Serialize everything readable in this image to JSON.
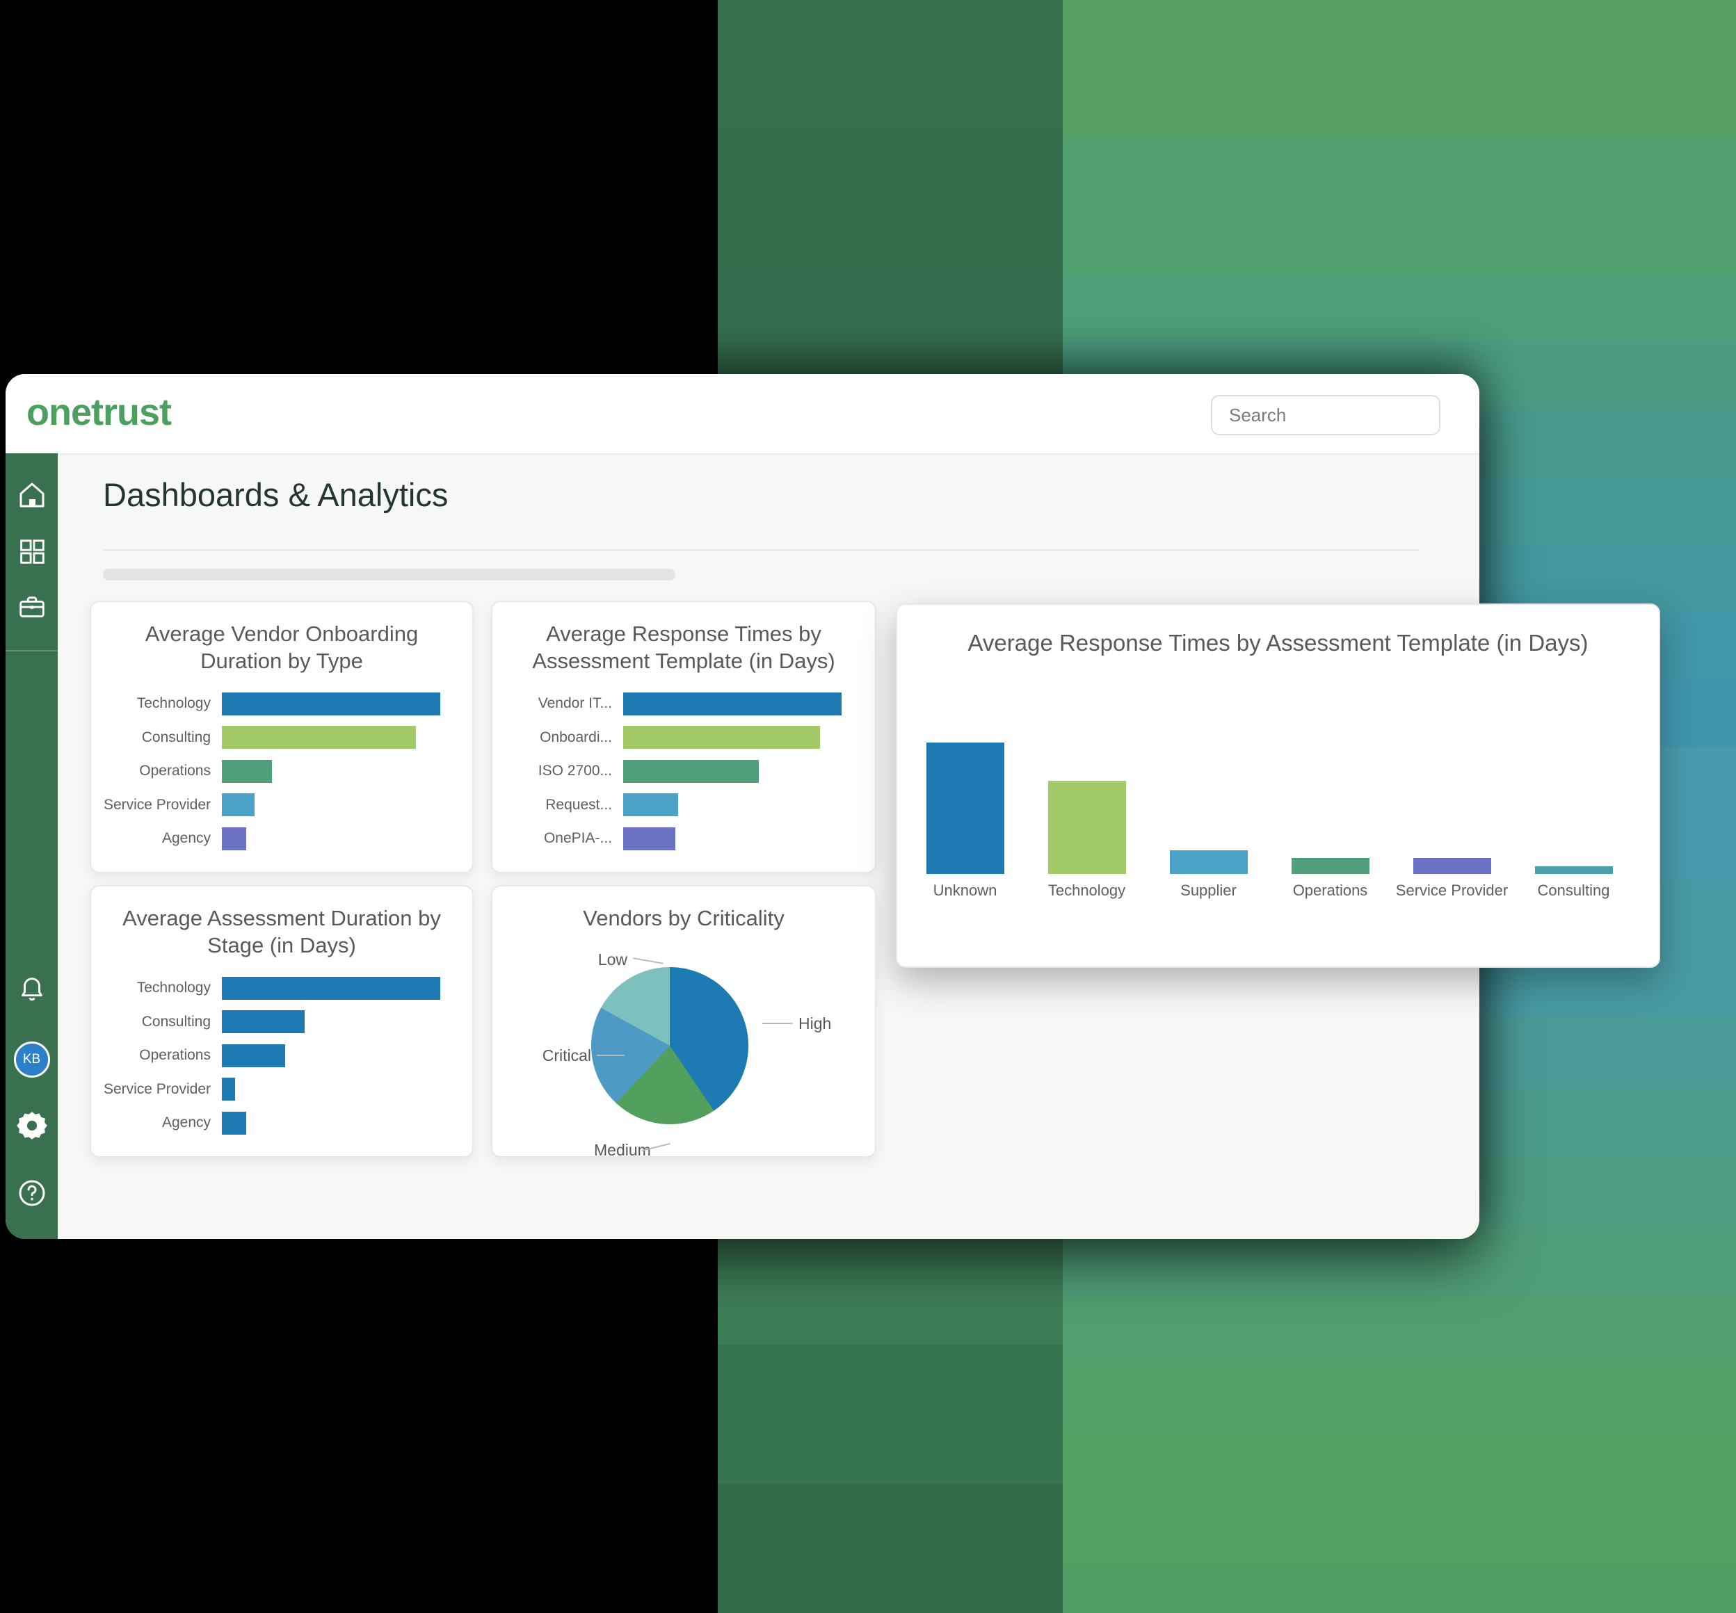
{
  "brand": {
    "logo_text": "onetrust",
    "logo_color": "#4BA05F"
  },
  "header": {
    "search_placeholder": "Search"
  },
  "page": {
    "title": "Dashboards & Analytics"
  },
  "sidebar": {
    "top_icons": [
      "home",
      "apps-grid",
      "briefcase"
    ],
    "bottom_icons": [
      "bell",
      "avatar",
      "gear",
      "help"
    ],
    "avatar_initials": "KB",
    "avatar_color": "#2B80C9",
    "background_color": "#39704F"
  },
  "palette": {
    "blue": "#1D7AB2",
    "light_green": "#A3CA68",
    "teal_green": "#4F9F7D",
    "light_blue": "#4AA2C6",
    "purple": "#6B72C4",
    "teal_cyan": "#4A9FAC"
  },
  "chart_data": [
    {
      "type": "bar",
      "orientation": "horizontal",
      "title": "Average Vendor Onboarding Duration by Type",
      "categories": [
        "Technology",
        "Consulting",
        "Operations",
        "Service Provider",
        "Agency"
      ],
      "values": [
        100,
        89,
        23,
        15,
        11
      ],
      "value_scale": "relative to longest bar; no numeric axis shown",
      "colors": [
        "#1D7AB2",
        "#A3CA68",
        "#4F9F7D",
        "#4AA2C6",
        "#6B72C4"
      ],
      "grid": false,
      "legend": false
    },
    {
      "type": "bar",
      "orientation": "horizontal",
      "title": "Average Response Times by Assessment Template (in Days)",
      "categories": [
        "Vendor IT...",
        "Onboardi...",
        "ISO 2700...",
        "Request...",
        "OnePIA-..."
      ],
      "values": [
        100,
        90,
        62,
        25,
        24
      ],
      "value_scale": "relative to longest bar; no numeric axis shown",
      "colors": [
        "#1D7AB2",
        "#A3CA68",
        "#4F9F7D",
        "#4AA2C6",
        "#6B72C4"
      ],
      "grid": false,
      "legend": false
    },
    {
      "type": "bar",
      "orientation": "vertical",
      "title": "Average Response Times by Assessment Template (in Days)",
      "categories": [
        "Unknown",
        "Technology",
        "Supplier",
        "Operations",
        "Service Provider",
        "Consulting"
      ],
      "values": [
        100,
        71,
        18,
        12,
        12,
        6
      ],
      "value_scale": "relative to tallest column; no numeric axis shown",
      "colors": [
        "#1D7AB2",
        "#A3CA68",
        "#4AA2C6",
        "#4F9F7D",
        "#6B72C4",
        "#4A9FAC"
      ],
      "grid": false,
      "legend": false
    },
    {
      "type": "bar",
      "orientation": "horizontal",
      "title": "Average Assessment Duration by Stage (in Days)",
      "categories": [
        "Technology",
        "Consulting",
        "Operations",
        "Service Provider",
        "Agency"
      ],
      "values": [
        100,
        38,
        29,
        6,
        11
      ],
      "value_scale": "relative to longest bar; no numeric axis shown",
      "colors": [
        "#1D7AB2",
        "#1D7AB2",
        "#1D7AB2",
        "#1D7AB2",
        "#1D7AB2"
      ],
      "grid": false,
      "legend": false
    },
    {
      "type": "pie",
      "title": "Vendors by Criticality",
      "labels": [
        "High",
        "Medium",
        "Critical",
        "Low"
      ],
      "values_pct": [
        40.5,
        21.5,
        21,
        17
      ],
      "colors": [
        "#1D7AB2",
        "#539F5E",
        "#4D9BC4",
        "#7EC0BD"
      ],
      "legend": "callout labels with leader lines"
    }
  ]
}
